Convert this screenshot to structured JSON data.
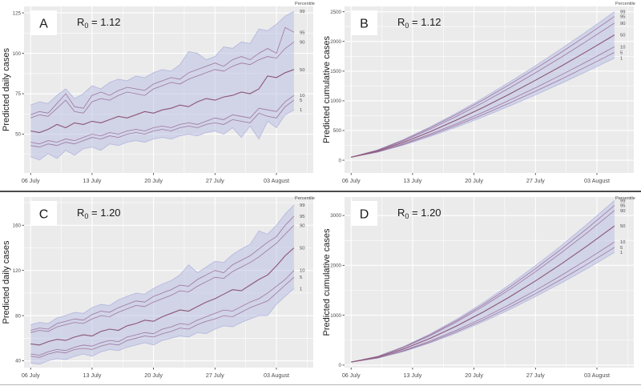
{
  "figure": {
    "panel_bg": "#ebebeb",
    "grid_major_color": "#ffffff",
    "grid_minor_color": "#f5f5f5",
    "band_fill": "rgba(183,188,228,0.50)",
    "band_edge_color": "#b7badf",
    "line_color": "#9d76a0",
    "median_color": "#8b5674",
    "tick_text_color": "#4d4d4d",
    "axis_title_color": "#1a1a1a",
    "letter_color": "#1a1a1a",
    "divider_color": "#4a4a4a",
    "percentile_header": "Percentile"
  },
  "chart_data": [
    {
      "type": "line",
      "letter": "A",
      "r0": {
        "base": "R",
        "sub": "0",
        "eq": " = 1.12"
      },
      "ylabel": "Predicted daily cases",
      "x_tick_labels": [
        "06 July",
        "13 July",
        "20 July",
        "27 July",
        "03 August"
      ],
      "x_tick_days": [
        0,
        7,
        14,
        21,
        28
      ],
      "x_minor_days": [
        3.5,
        10.5,
        17.5,
        24.5,
        31.5
      ],
      "y_ticks": [
        50,
        75,
        100,
        125
      ],
      "y_minor": [
        37.5,
        62.5,
        87.5,
        112.5
      ],
      "ylim": [
        26,
        129
      ],
      "xlim": [
        -0.75,
        32.2
      ],
      "percentile_labels": [
        "99",
        "95",
        "90",
        "50",
        "10",
        "5",
        "1"
      ],
      "x_days": [
        0,
        1,
        2,
        3,
        4,
        5,
        6,
        7,
        8,
        9,
        10,
        11,
        12,
        13,
        14,
        15,
        16,
        17,
        18,
        19,
        20,
        21,
        22,
        23,
        24,
        25,
        26,
        27,
        28,
        29,
        30
      ],
      "series": {
        "p99": [
          68,
          70,
          69,
          74,
          78,
          72,
          75,
          80,
          78,
          82,
          84,
          83,
          86,
          85,
          88,
          90,
          89,
          93,
          101,
          100,
          96,
          98,
          104,
          103,
          107,
          106,
          115,
          114,
          118,
          123,
          126
        ],
        "p95": [
          62,
          64,
          63,
          69,
          75,
          67,
          66,
          74,
          76,
          74,
          77,
          79,
          78,
          77,
          81,
          83,
          85,
          84,
          88,
          90,
          92,
          94,
          92,
          96,
          98,
          96,
          100,
          103,
          100,
          116,
          113
        ],
        "p90": [
          60,
          62,
          61,
          66,
          71,
          64,
          63,
          70,
          72,
          71,
          74,
          76,
          75,
          74,
          78,
          80,
          82,
          81,
          84,
          86,
          88,
          90,
          89,
          92,
          94,
          93,
          96,
          98,
          97,
          103,
          107
        ],
        "p50": [
          52,
          51,
          53,
          56,
          54,
          57,
          56,
          58,
          57,
          59,
          61,
          60,
          62,
          64,
          63,
          65,
          66,
          68,
          67,
          70,
          72,
          71,
          73,
          74,
          76,
          75,
          78,
          86,
          85,
          88,
          90
        ],
        "p10": [
          45,
          44,
          46,
          45,
          47,
          46,
          48,
          50,
          49,
          51,
          50,
          52,
          53,
          52,
          54,
          55,
          54,
          56,
          57,
          56,
          58,
          60,
          59,
          62,
          61,
          60,
          66,
          65,
          64,
          70,
          74
        ],
        "p5": [
          43,
          42,
          44,
          43,
          45,
          44,
          46,
          48,
          47,
          49,
          48,
          50,
          51,
          50,
          52,
          53,
          52,
          54,
          55,
          54,
          56,
          57,
          56,
          59,
          58,
          57,
          63,
          61,
          60,
          67,
          71
        ],
        "p1": [
          36,
          34,
          38,
          35,
          40,
          37,
          41,
          42,
          40,
          44,
          43,
          45,
          46,
          45,
          47,
          48,
          47,
          49,
          50,
          49,
          51,
          52,
          50,
          54,
          48,
          55,
          47,
          58,
          54,
          62,
          65
        ]
      }
    },
    {
      "type": "line",
      "letter": "B",
      "r0": {
        "base": "R",
        "sub": "0",
        "eq": " = 1.12"
      },
      "ylabel": "Predicted cumulative  cases",
      "x_tick_labels": [
        "06 July",
        "13 July",
        "20 July",
        "27 July",
        "03 August"
      ],
      "x_tick_days": [
        0,
        7,
        14,
        21,
        28
      ],
      "x_minor_days": [
        3.5,
        10.5,
        17.5,
        24.5,
        31.5
      ],
      "y_ticks": [
        0,
        500,
        1000,
        1500,
        2000,
        2500
      ],
      "y_minor": [
        250,
        750,
        1250,
        1750,
        2250
      ],
      "ylim": [
        -215,
        2590
      ],
      "xlim": [
        -0.75,
        32.2
      ],
      "percentile_labels": [
        "99",
        "95",
        "90",
        "50",
        "10",
        "5",
        "1"
      ],
      "x_days": [
        0,
        3,
        6,
        9,
        12,
        15,
        18,
        21,
        24,
        27,
        30
      ],
      "series": {
        "p99": [
          50,
          173,
          352,
          562,
          795,
          1045,
          1312,
          1591,
          1883,
          2186,
          2500
        ],
        "p95": [
          50,
          169,
          342,
          545,
          771,
          1012,
          1271,
          1541,
          1823,
          2117,
          2420
        ],
        "p90": [
          50,
          163,
          329,
          522,
          737,
          968,
          1214,
          1472,
          1740,
          2021,
          2310
        ],
        "p50": [
          50,
          153,
          304,
          480,
          676,
          886,
          1111,
          1346,
          1591,
          1846,
          2110
        ],
        "p10": [
          50,
          143,
          280,
          439,
          615,
          805,
          1008,
          1220,
          1441,
          1672,
          1910
        ],
        "p5": [
          50,
          138,
          268,
          419,
          587,
          767,
          959,
          1160,
          1370,
          1589,
          1815
        ],
        "p1": [
          50,
          134,
          256,
          399,
          558,
          728,
          910,
          1100,
          1299,
          1506,
          1720
        ]
      }
    },
    {
      "type": "line",
      "letter": "C",
      "r0": {
        "base": "R",
        "sub": "0",
        "eq": " = 1.20"
      },
      "ylabel": "Predicted daily cases",
      "x_tick_labels": [
        "06 July",
        "13 July",
        "20 July",
        "27 July",
        "03 August"
      ],
      "x_tick_days": [
        0,
        7,
        14,
        21,
        28
      ],
      "x_minor_days": [
        3.5,
        10.5,
        17.5,
        24.5,
        31.5
      ],
      "y_ticks": [
        40,
        80,
        120,
        160
      ],
      "y_minor": [
        60,
        100,
        140,
        180
      ],
      "ylim": [
        34,
        185
      ],
      "xlim": [
        -0.75,
        32.2
      ],
      "percentile_labels": [
        "99",
        "95",
        "90",
        "50",
        "10",
        "5",
        "1"
      ],
      "x_days": [
        0,
        1,
        2,
        3,
        4,
        5,
        6,
        7,
        8,
        9,
        10,
        11,
        12,
        13,
        14,
        15,
        16,
        17,
        18,
        19,
        20,
        21,
        22,
        23,
        24,
        25,
        26,
        27,
        28,
        29,
        30
      ],
      "series": {
        "p99": [
          72,
          74,
          73,
          78,
          80,
          83,
          82,
          87,
          90,
          89,
          94,
          97,
          100,
          99,
          104,
          108,
          111,
          116,
          125,
          118,
          123,
          128,
          127,
          134,
          139,
          143,
          155,
          152,
          160,
          170,
          178
        ],
        "p95": [
          67,
          69,
          68,
          73,
          75,
          77,
          76,
          81,
          84,
          83,
          87,
          90,
          93,
          92,
          97,
          100,
          103,
          107,
          106,
          112,
          116,
          120,
          118,
          125,
          129,
          133,
          139,
          145,
          150,
          160,
          168
        ],
        "p90": [
          65,
          67,
          66,
          70,
          72,
          74,
          73,
          77,
          80,
          79,
          83,
          86,
          89,
          88,
          92,
          95,
          98,
          102,
          101,
          106,
          110,
          114,
          113,
          119,
          123,
          127,
          132,
          138,
          144,
          152,
          160
        ],
        "p50": [
          55,
          54,
          57,
          59,
          58,
          61,
          63,
          62,
          66,
          68,
          67,
          71,
          73,
          76,
          75,
          79,
          82,
          85,
          84,
          88,
          92,
          95,
          99,
          103,
          102,
          107,
          112,
          116,
          124,
          133,
          140
        ],
        "p10": [
          46,
          45,
          48,
          50,
          49,
          52,
          54,
          53,
          56,
          58,
          57,
          61,
          63,
          65,
          64,
          68,
          70,
          73,
          72,
          76,
          79,
          82,
          85,
          84,
          88,
          92,
          95,
          100,
          106,
          112,
          120
        ],
        "p5": [
          44,
          43,
          46,
          48,
          47,
          50,
          51,
          50,
          53,
          55,
          54,
          58,
          60,
          62,
          61,
          64,
          66,
          69,
          68,
          72,
          75,
          77,
          80,
          79,
          83,
          87,
          90,
          93,
          100,
          107,
          114
        ],
        "p1": [
          38,
          37,
          40,
          42,
          41,
          44,
          46,
          44,
          48,
          50,
          49,
          52,
          54,
          56,
          54,
          58,
          60,
          62,
          61,
          65,
          64,
          68,
          71,
          70,
          74,
          77,
          80,
          80,
          90,
          97,
          104
        ]
      }
    },
    {
      "type": "line",
      "letter": "D",
      "r0": {
        "base": "R",
        "sub": "0",
        "eq": " = 1.20"
      },
      "ylabel": "Predicted cumulative  cases",
      "x_tick_labels": [
        "06 July",
        "13 July",
        "20 July",
        "27 July",
        "03 August"
      ],
      "x_tick_days": [
        0,
        7,
        14,
        21,
        28
      ],
      "x_minor_days": [
        3.5,
        10.5,
        17.5,
        24.5,
        31.5
      ],
      "y_ticks": [
        0,
        1000,
        2000,
        3000
      ],
      "y_minor": [
        500,
        1500,
        2500
      ],
      "ylim": [
        -50,
        3370
      ],
      "xlim": [
        -0.75,
        32.2
      ],
      "percentile_labels": [
        "99",
        "95",
        "90",
        "50",
        "10",
        "5",
        "1"
      ],
      "x_days": [
        0,
        3,
        6,
        9,
        12,
        15,
        18,
        21,
        24,
        27,
        30
      ],
      "series": {
        "p99": [
          60,
          175,
          374,
          625,
          918,
          1246,
          1605,
          1992,
          2404,
          2841,
          3300
        ],
        "p95": [
          60,
          171,
          364,
          608,
          891,
          1209,
          1557,
          1932,
          2332,
          2755,
          3200
        ],
        "p90": [
          60,
          168,
          354,
          590,
          865,
          1173,
          1509,
          1872,
          2260,
          2669,
          3100
        ],
        "p50": [
          60,
          157,
          324,
          536,
          783,
          1059,
          1362,
          1688,
          2035,
          2403,
          2790
        ],
        "p10": [
          60,
          146,
          293,
          481,
          698,
          942,
          1209,
          1497,
          1804,
          2129,
          2470
        ],
        "p5": [
          60,
          142,
          283,
          461,
          669,
          902,
          1157,
          1431,
          1724,
          2034,
          2360
        ],
        "p1": [
          60,
          138,
          273,
          444,
          643,
          865,
          1109,
          1372,
          1652,
          1948,
          2260
        ]
      }
    }
  ]
}
